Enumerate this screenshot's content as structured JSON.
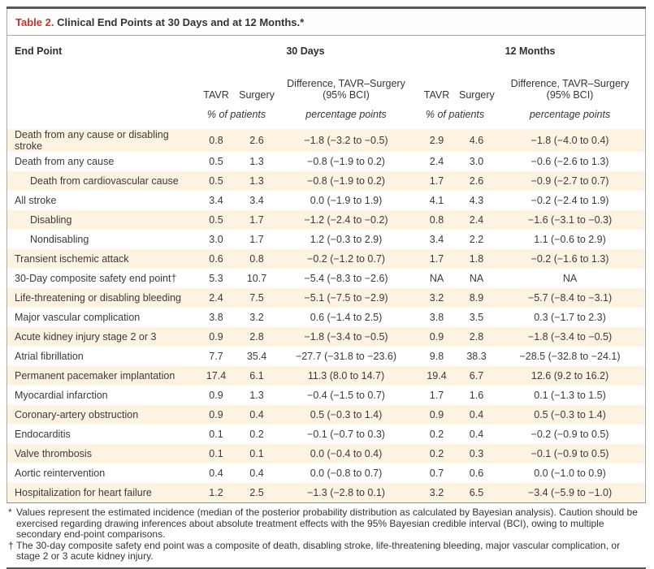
{
  "title": {
    "label": "Table 2.",
    "text": "Clinical End Points at 30 Days and at 12 Months.*"
  },
  "header": {
    "end_point": "End Point",
    "group_30_days": "30 Days",
    "group_12_months": "12 Months",
    "tavr": "TAVR",
    "surgery": "Surgery",
    "difference_line1": "Difference, TAVR–Surgery",
    "difference_line2": "(95% BCI)",
    "unit_patients": "% of patients",
    "unit_points": "percentage points"
  },
  "rows": [
    {
      "label": "Death from any cause or disabling stroke",
      "indent": 0,
      "values": [
        "0.8",
        "2.6",
        "−1.8 (−3.2 to −0.5)",
        "2.9",
        "4.6",
        "−1.8 (−4.0 to 0.4)"
      ]
    },
    {
      "label": "Death from any cause",
      "indent": 0,
      "values": [
        "0.5",
        "1.3",
        "−0.8 (−1.9 to 0.2)",
        "2.4",
        "3.0",
        "−0.6 (−2.6 to 1.3)"
      ]
    },
    {
      "label": "Death from cardiovascular cause",
      "indent": 1,
      "values": [
        "0.5",
        "1.3",
        "−0.8 (−1.9 to 0.2)",
        "1.7",
        "2.6",
        "−0.9 (−2.7 to 0.7)"
      ]
    },
    {
      "label": "All stroke",
      "indent": 0,
      "values": [
        "3.4",
        "3.4",
        "0.0 (−1.9 to 1.9)",
        "4.1",
        "4.3",
        "−0.2 (−2.4 to 1.9)"
      ]
    },
    {
      "label": "Disabling",
      "indent": 1,
      "values": [
        "0.5",
        "1.7",
        "−1.2 (−2.4 to −0.2)",
        "0.8",
        "2.4",
        "−1.6 (−3.1 to −0.3)"
      ]
    },
    {
      "label": "Nondisabling",
      "indent": 1,
      "values": [
        "3.0",
        "1.7",
        "1.2 (−0.3 to 2.9)",
        "3.4",
        "2.2",
        "1.1 (−0.6 to 2.9)"
      ]
    },
    {
      "label": "Transient ischemic attack",
      "indent": 0,
      "values": [
        "0.6",
        "0.8",
        "−0.2 (−1.2 to 0.7)",
        "1.7",
        "1.8",
        "−0.2 (−1.6 to 1.3)"
      ]
    },
    {
      "label": "30-Day composite safety end point†",
      "indent": 0,
      "values": [
        "5.3",
        "10.7",
        "−5.4 (−8.3 to −2.6)",
        "NA",
        "NA",
        "NA"
      ]
    },
    {
      "label": "Life-threatening or disabling bleeding",
      "indent": 0,
      "values": [
        "2.4",
        "7.5",
        "−5.1 (−7.5 to −2.9)",
        "3.2",
        "8.9",
        "−5.7 (−8.4 to −3.1)"
      ]
    },
    {
      "label": "Major vascular complication",
      "indent": 0,
      "values": [
        "3.8",
        "3.2",
        "0.6 (−1.4 to 2.5)",
        "3.8",
        "3.5",
        "0.3 (−1.7 to 2.3)"
      ]
    },
    {
      "label": "Acute kidney injury stage 2 or 3",
      "indent": 0,
      "values": [
        "0.9",
        "2.8",
        "−1.8 (−3.4 to −0.5)",
        "0.9",
        "2.8",
        "−1.8 (−3.4 to −0.5)"
      ]
    },
    {
      "label": "Atrial fibrillation",
      "indent": 0,
      "values": [
        "7.7",
        "35.4",
        "−27.7 (−31.8 to −23.6)",
        "9.8",
        "38.3",
        "−28.5 (−32.8 to −24.1)"
      ]
    },
    {
      "label": "Permanent pacemaker implantation",
      "indent": 0,
      "values": [
        "17.4",
        "6.1",
        "11.3 (8.0 to 14.7)",
        "19.4",
        "6.7",
        "12.6 (9.2 to 16.2)"
      ]
    },
    {
      "label": "Myocardial infarction",
      "indent": 0,
      "values": [
        "0.9",
        "1.3",
        "−0.4 (−1.5 to 0.7)",
        "1.7",
        "1.6",
        "0.1 (−1.3 to 1.5)"
      ]
    },
    {
      "label": "Coronary-artery obstruction",
      "indent": 0,
      "values": [
        "0.9",
        "0.4",
        "0.5 (−0.3 to 1.4)",
        "0.9",
        "0.4",
        "0.5 (−0.3 to 1.4)"
      ]
    },
    {
      "label": "Endocarditis",
      "indent": 0,
      "values": [
        "0.1",
        "0.2",
        "−0.1 (−0.7 to 0.3)",
        "0.2",
        "0.4",
        "−0.2 (−0.9 to 0.5)"
      ]
    },
    {
      "label": "Valve thrombosis",
      "indent": 0,
      "values": [
        "0.1",
        "0.1",
        "0.0 (−0.4 to 0.4)",
        "0.2",
        "0.3",
        "−0.1 (−0.9 to 0.5)"
      ]
    },
    {
      "label": "Aortic reintervention",
      "indent": 0,
      "values": [
        "0.4",
        "0.4",
        "0.0 (−0.8 to 0.7)",
        "0.7",
        "0.6",
        "0.0 (−1.0 to 0.9)"
      ]
    },
    {
      "label": "Hospitalization for heart failure",
      "indent": 0,
      "values": [
        "1.2",
        "2.5",
        "−1.3 (−2.8 to 0.1)",
        "3.2",
        "6.5",
        "−3.4 (−5.9 to −1.0)"
      ]
    }
  ],
  "footnotes": [
    {
      "marker": "*",
      "text": "Values represent the estimated incidence (median of the posterior probability distribution as calculated by Bayesian analysis). Caution should be exercised regarding drawing inferences about absolute treatment effects with the 95% Bayesian credible interval (BCI), owing to multiple secondary end-point comparisons."
    },
    {
      "marker": "†",
      "text": "The 30-day composite safety end point was a composite of death, disabling stroke, life-threatening bleeding, major vascular complication, or stage 2 or 3 acute kidney injury."
    }
  ],
  "colors": {
    "accent_red": "#bf362c",
    "row_shade": "#fdf3e1",
    "rule_dark": "#56575b",
    "rule_light": "#a8a8a8",
    "text": "#3a3a3c"
  }
}
